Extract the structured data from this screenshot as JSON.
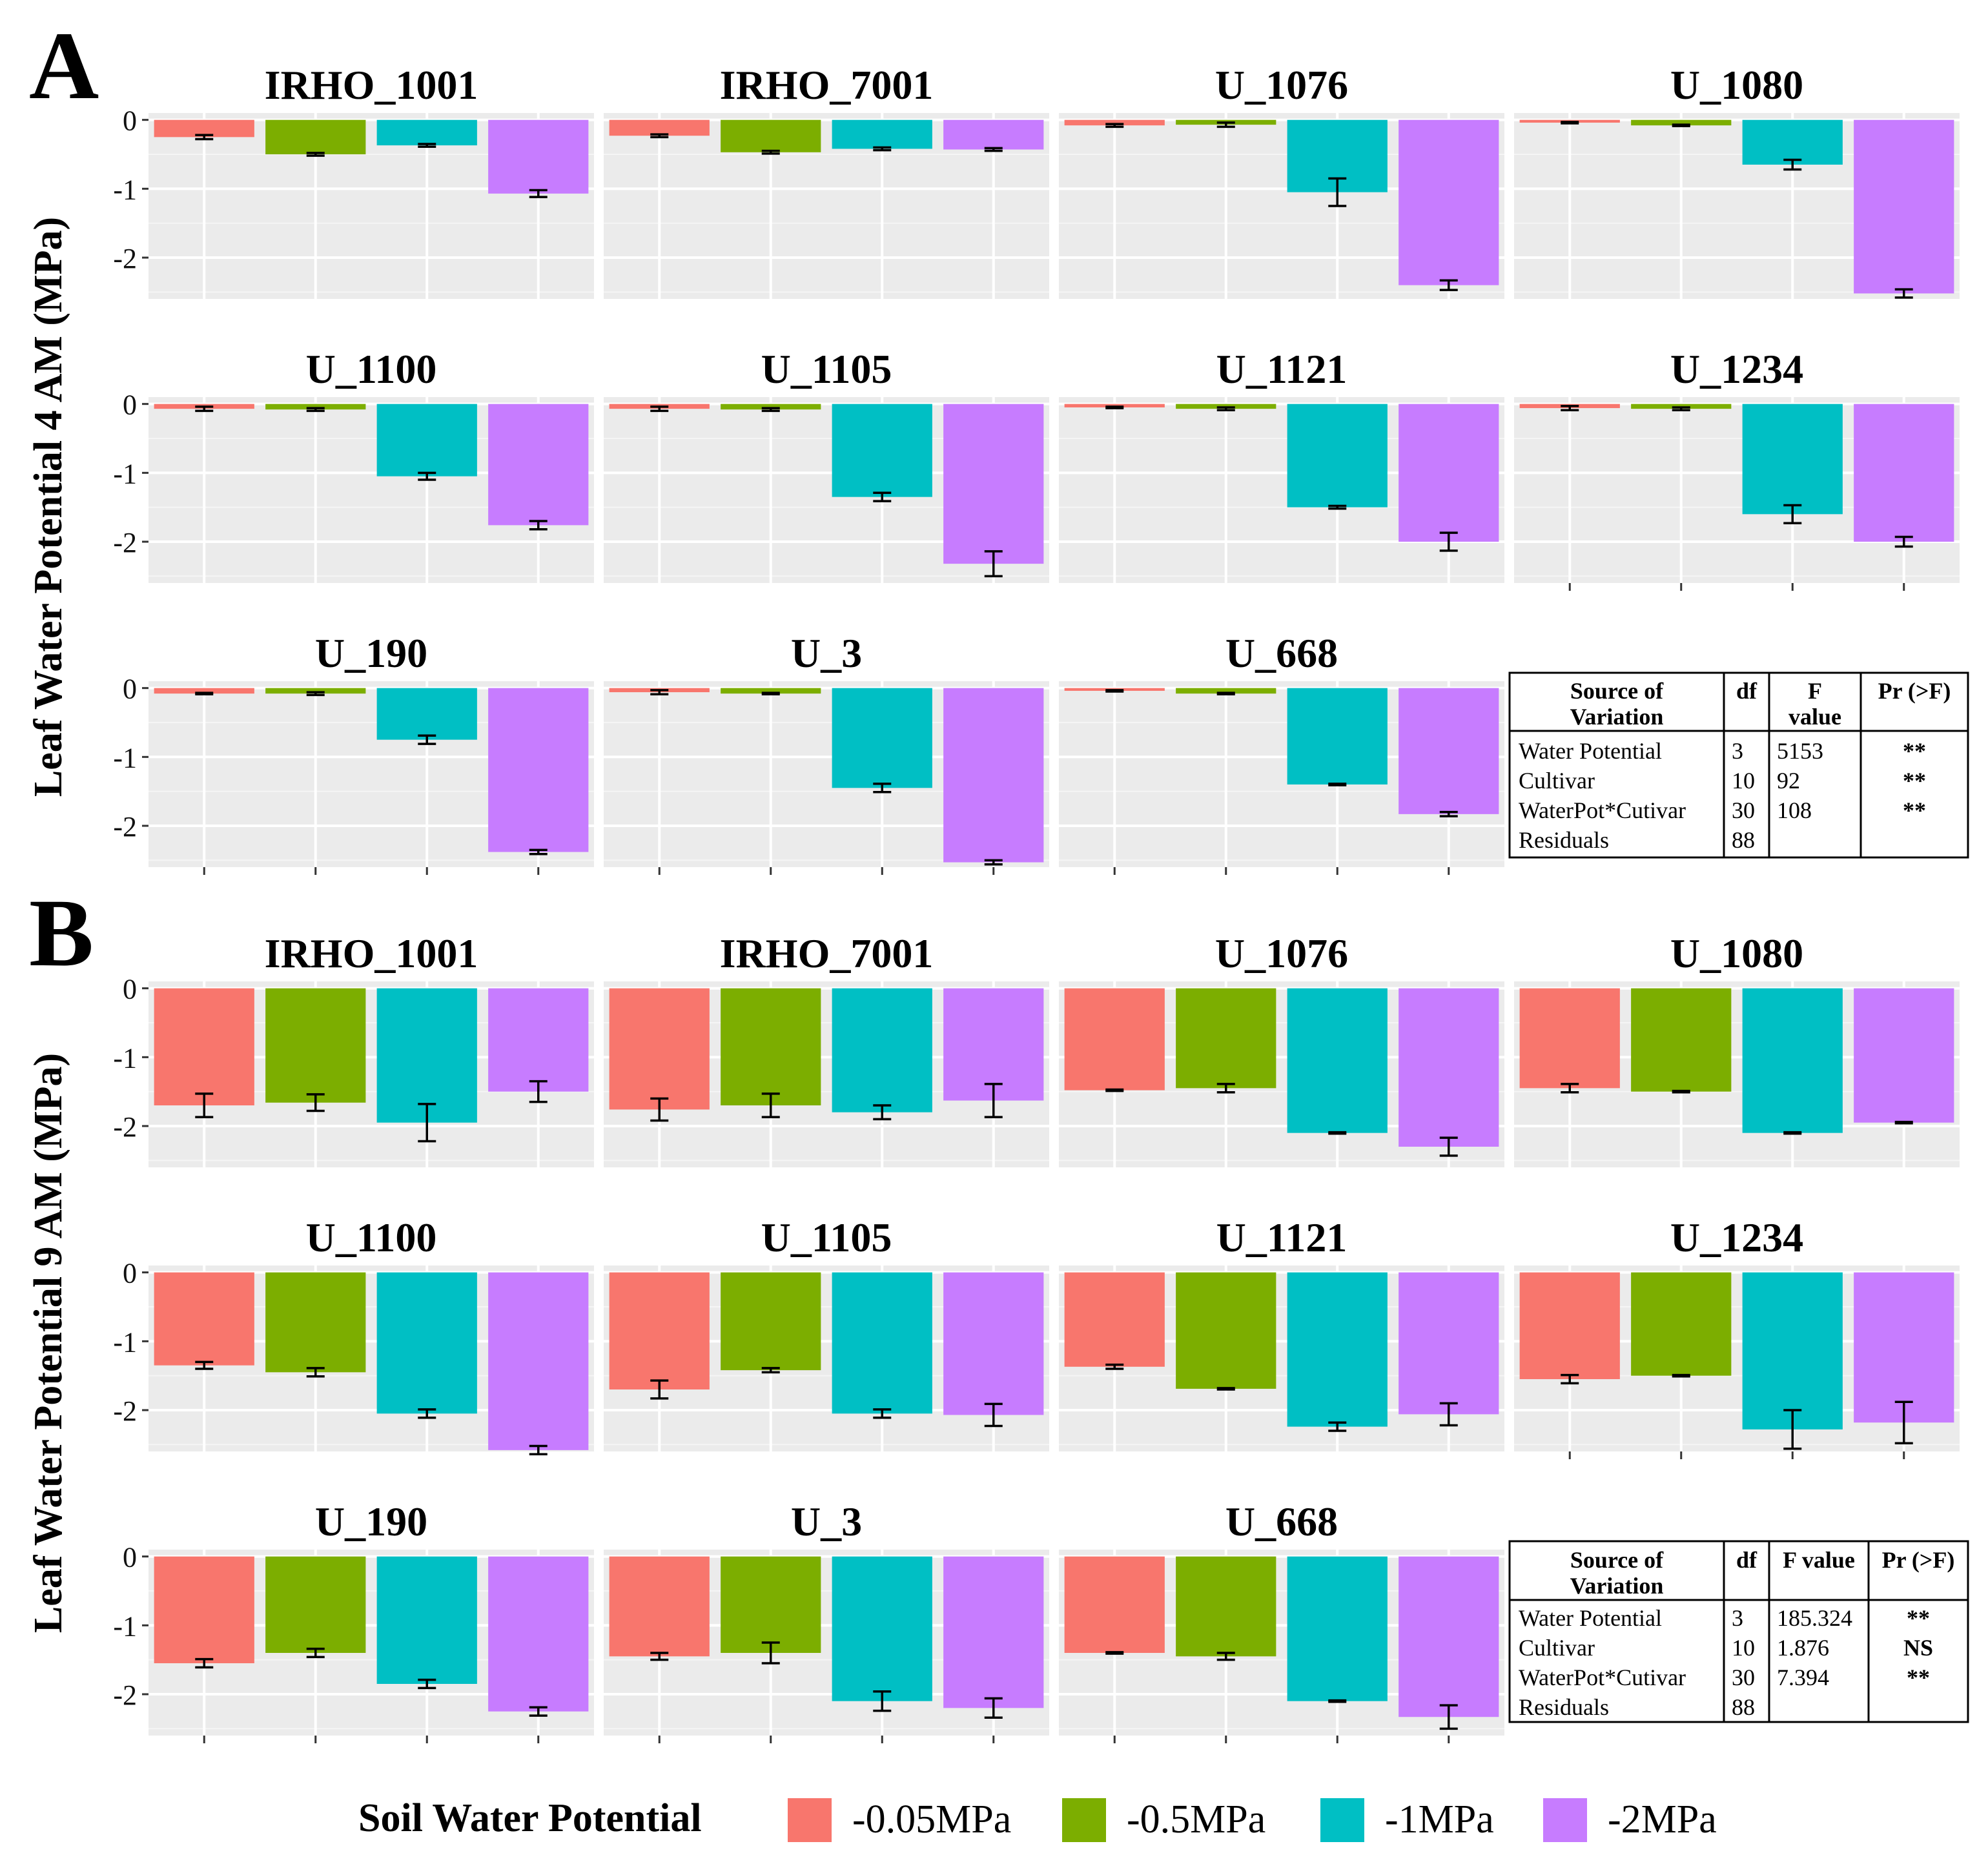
{
  "figure": {
    "panel_a_label": "A",
    "panel_b_label": "B",
    "ylabel_a": "Leaf Water Potential 4 AM (MPa)",
    "ylabel_b": "Leaf Water Potential 9 AM (MPa)",
    "y_tick_labels": [
      "0",
      "-1",
      "-2"
    ],
    "legend_title": "Soil Water Potential"
  },
  "legend": [
    {
      "label": "-0.05MPa",
      "color": "#F8766D"
    },
    {
      "label": "-0.5MPa",
      "color": "#7CAE00"
    },
    {
      "label": "-1MPa",
      "color": "#00BFC4"
    },
    {
      "label": "-2MPa",
      "color": "#C77CFF"
    }
  ],
  "chart_data": [
    {
      "type": "bar",
      "title": "Leaf Water Potential 4 AM (MPa)",
      "panel": "A",
      "ylabel": "Leaf Water Potential 4 AM (MPa)",
      "ylim": [
        -2.6,
        0.1
      ],
      "y_ticks": [
        0,
        -1,
        -2
      ],
      "categories": [
        "-0.05MPa",
        "-0.5MPa",
        "-1MPa",
        "-2MPa"
      ],
      "facets": [
        {
          "name": "IRHO_1001",
          "values": [
            -0.25,
            -0.5,
            -0.37,
            -1.07
          ],
          "errors": [
            0.03,
            0.02,
            0.02,
            0.05
          ]
        },
        {
          "name": "IRHO_7001",
          "values": [
            -0.23,
            -0.47,
            -0.42,
            -0.43
          ],
          "errors": [
            0.02,
            0.02,
            0.02,
            0.02
          ]
        },
        {
          "name": "U_1076",
          "values": [
            -0.08,
            -0.07,
            -1.05,
            -2.4
          ],
          "errors": [
            0.02,
            0.03,
            0.2,
            0.07
          ]
        },
        {
          "name": "U_1080",
          "values": [
            -0.04,
            -0.08,
            -0.65,
            -2.52
          ],
          "errors": [
            0.01,
            0.01,
            0.07,
            0.06
          ]
        },
        {
          "name": "U_1100",
          "values": [
            -0.07,
            -0.08,
            -1.05,
            -1.76
          ],
          "errors": [
            0.03,
            0.02,
            0.05,
            0.06
          ]
        },
        {
          "name": "U_1105",
          "values": [
            -0.07,
            -0.08,
            -1.35,
            -2.32
          ],
          "errors": [
            0.03,
            0.02,
            0.06,
            0.18
          ]
        },
        {
          "name": "U_1121",
          "values": [
            -0.05,
            -0.07,
            -1.5,
            -2.0
          ],
          "errors": [
            0.01,
            0.02,
            0.02,
            0.13
          ]
        },
        {
          "name": "U_1234",
          "values": [
            -0.06,
            -0.07,
            -1.6,
            -2.0
          ],
          "errors": [
            0.03,
            0.02,
            0.13,
            0.07
          ]
        },
        {
          "name": "U_190",
          "values": [
            -0.08,
            -0.08,
            -0.75,
            -2.38
          ],
          "errors": [
            0.01,
            0.02,
            0.06,
            0.03
          ]
        },
        {
          "name": "U_3",
          "values": [
            -0.06,
            -0.08,
            -1.45,
            -2.53
          ],
          "errors": [
            0.03,
            0.01,
            0.06,
            0.03
          ]
        },
        {
          "name": "U_668",
          "values": [
            -0.04,
            -0.08,
            -1.4,
            -1.83
          ],
          "errors": [
            0.01,
            0.01,
            0.01,
            0.03
          ]
        }
      ]
    },
    {
      "type": "bar",
      "title": "Leaf Water Potential 9 AM (MPa)",
      "panel": "B",
      "ylabel": "Leaf Water Potential 9 AM (MPa)",
      "ylim": [
        -2.6,
        0.1
      ],
      "y_ticks": [
        0,
        -1,
        -2
      ],
      "categories": [
        "-0.05MPa",
        "-0.5MPa",
        "-1MPa",
        "-2MPa"
      ],
      "facets": [
        {
          "name": "IRHO_1001",
          "values": [
            -1.7,
            -1.66,
            -1.95,
            -1.5
          ],
          "errors": [
            0.17,
            0.12,
            0.27,
            0.15
          ]
        },
        {
          "name": "IRHO_7001",
          "values": [
            -1.76,
            -1.7,
            -1.8,
            -1.63
          ],
          "errors": [
            0.16,
            0.17,
            0.1,
            0.24
          ]
        },
        {
          "name": "U_1076",
          "values": [
            -1.48,
            -1.45,
            -2.1,
            -2.3
          ],
          "errors": [
            0.01,
            0.06,
            0.01,
            0.13
          ]
        },
        {
          "name": "U_1080",
          "values": [
            -1.45,
            -1.5,
            -2.1,
            -1.95
          ],
          "errors": [
            0.06,
            0.01,
            0.01,
            0.01
          ]
        },
        {
          "name": "U_1100",
          "values": [
            -1.35,
            -1.45,
            -2.05,
            -2.58
          ],
          "errors": [
            0.05,
            0.06,
            0.06,
            0.06
          ]
        },
        {
          "name": "U_1105",
          "values": [
            -1.7,
            -1.42,
            -2.05,
            -2.07
          ],
          "errors": [
            0.13,
            0.03,
            0.06,
            0.16
          ]
        },
        {
          "name": "U_1121",
          "values": [
            -1.37,
            -1.69,
            -2.24,
            -2.06
          ],
          "errors": [
            0.03,
            0.01,
            0.06,
            0.16
          ]
        },
        {
          "name": "U_1234",
          "values": [
            -1.55,
            -1.5,
            -2.28,
            -2.18
          ],
          "errors": [
            0.06,
            0.01,
            0.28,
            0.3
          ]
        },
        {
          "name": "U_190",
          "values": [
            -1.55,
            -1.4,
            -1.85,
            -2.25
          ],
          "errors": [
            0.06,
            0.06,
            0.06,
            0.06
          ]
        },
        {
          "name": "U_3",
          "values": [
            -1.45,
            -1.4,
            -2.1,
            -2.2
          ],
          "errors": [
            0.05,
            0.15,
            0.14,
            0.14
          ]
        },
        {
          "name": "U_668",
          "values": [
            -1.4,
            -1.45,
            -2.1,
            -2.33
          ],
          "errors": [
            0.01,
            0.05,
            0.01,
            0.17
          ]
        }
      ]
    }
  ],
  "anova_a": {
    "headers": [
      "Source of Variation",
      "df",
      "F value",
      "Pr (>F)"
    ],
    "rows": [
      [
        "Water Potential",
        "3",
        "5153",
        "**"
      ],
      [
        "Cultivar",
        "10",
        "92",
        "**"
      ],
      [
        "WaterPot*Cutivar",
        "30",
        "108",
        "**"
      ],
      [
        "Residuals",
        "88",
        "",
        ""
      ]
    ]
  },
  "anova_b": {
    "headers": [
      "Source of Variation",
      "df",
      "F value",
      "Pr (>F)"
    ],
    "rows": [
      [
        "Water Potential",
        "3",
        "185.324",
        "**"
      ],
      [
        "Cultivar",
        "10",
        "1.876",
        "NS"
      ],
      [
        "WaterPot*Cutivar",
        "30",
        "7.394",
        "**"
      ],
      [
        "Residuals",
        "88",
        "",
        ""
      ]
    ]
  }
}
